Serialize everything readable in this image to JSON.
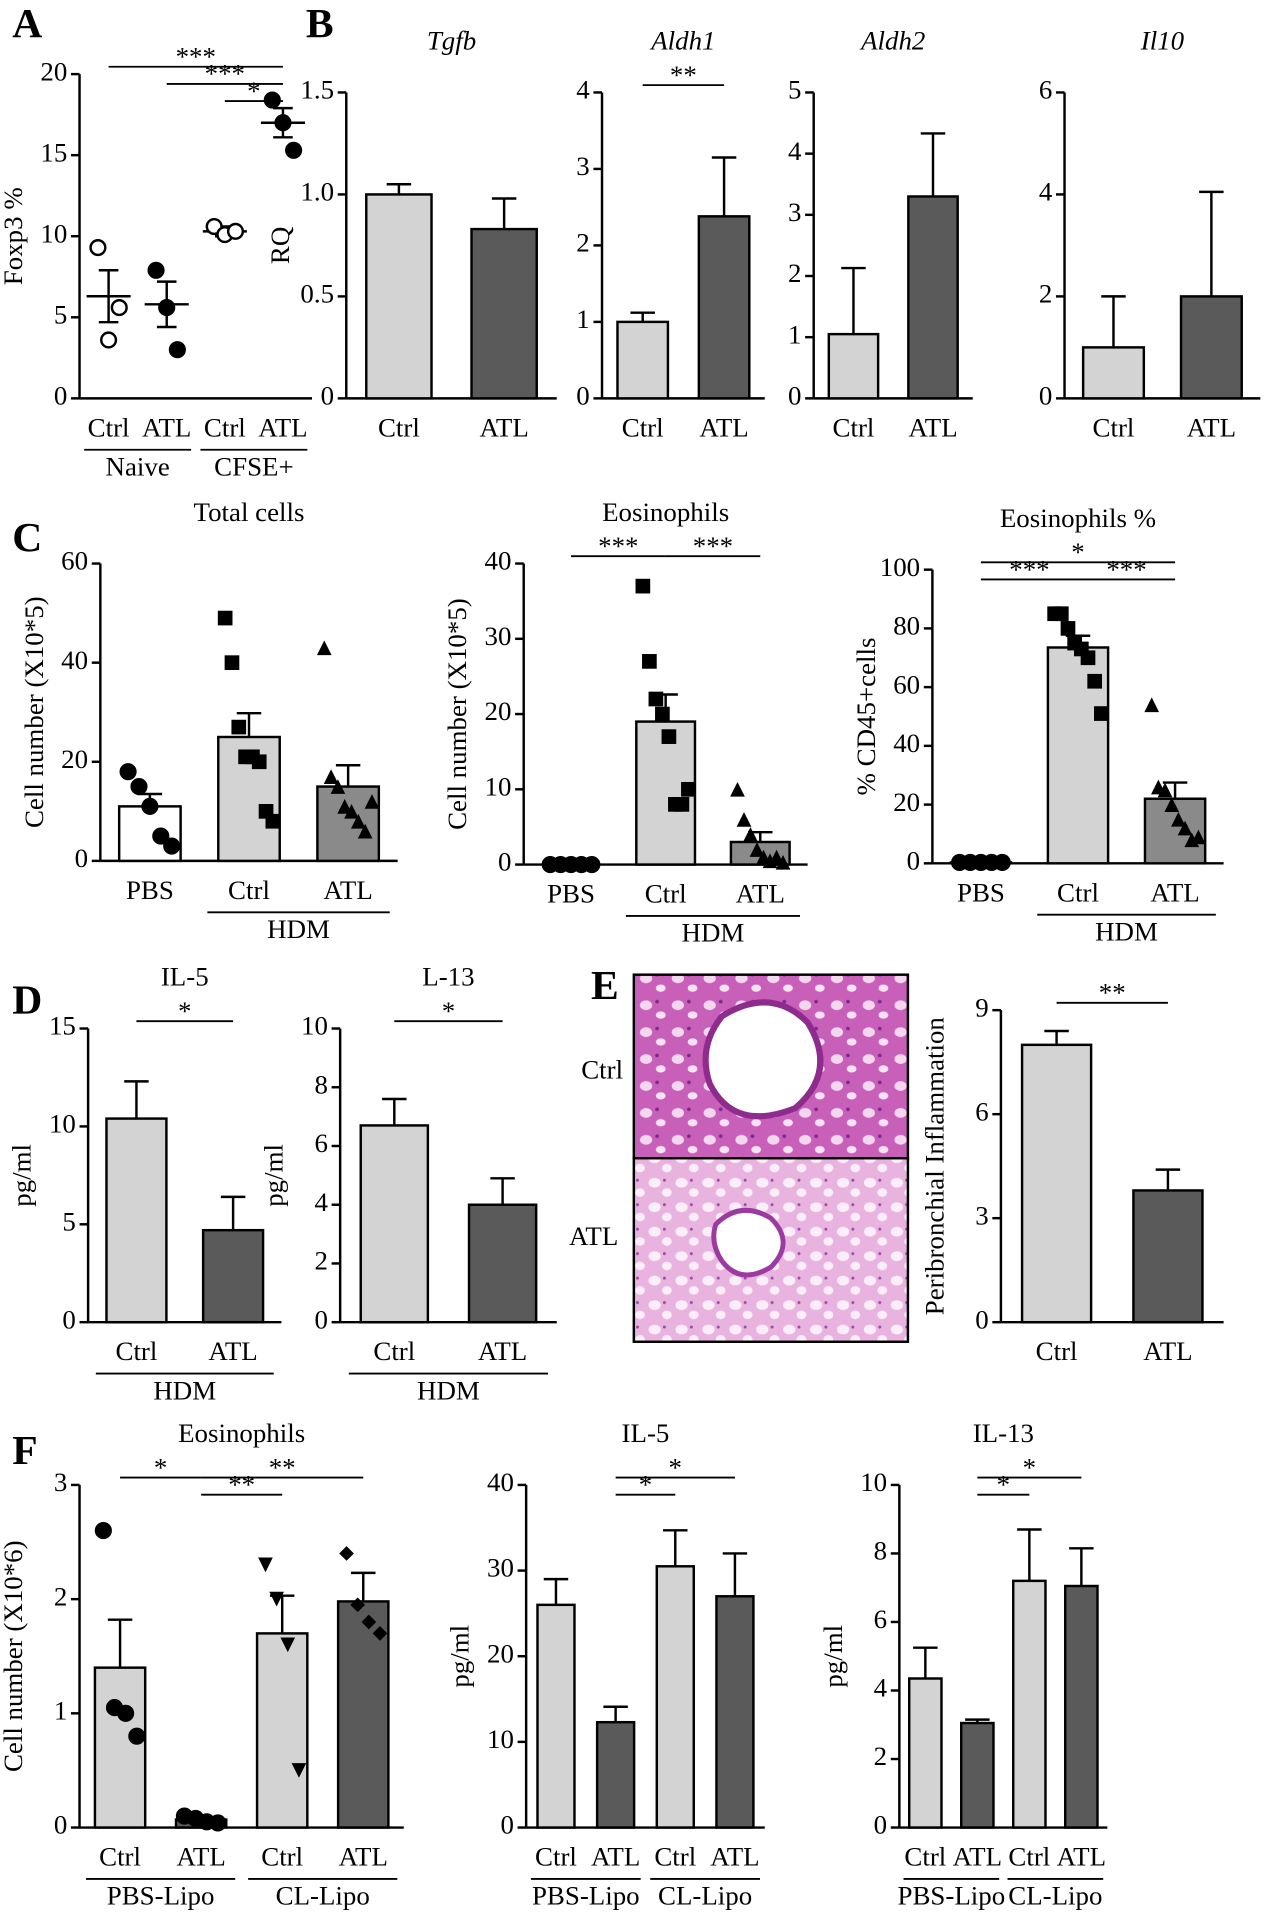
{
  "chart_data": [
    {
      "type": "dot",
      "panel": "A",
      "ylabel": "Foxp3 %",
      "categories": [
        "Ctrl",
        "ATL",
        "Ctrl",
        "ATL"
      ],
      "values": [
        6.3,
        5.8,
        10.3,
        17.0
      ],
      "errors": [
        1.6,
        1.4,
        0.3,
        0.9
      ],
      "markers": [
        "open-circle",
        "circle",
        "open-circle",
        "circle"
      ],
      "points": [
        [
          9.3,
          3.6,
          5.6
        ],
        [
          7.9,
          5.6,
          3.0
        ],
        [
          10.6,
          10.1,
          10.3
        ],
        [
          18.4,
          17.0,
          15.3
        ]
      ],
      "ylim": [
        0,
        20
      ],
      "yticks": [
        0,
        5,
        10,
        15,
        20
      ],
      "groups": [
        {
          "label": "Naive",
          "from": 0,
          "to": 1
        },
        {
          "label": "CFSE+",
          "from": 2,
          "to": 3
        }
      ],
      "significance": [
        {
          "label": "***",
          "from": 0,
          "to": 3
        },
        {
          "label": "***",
          "from": 1,
          "to": 3
        },
        {
          "label": "*",
          "from": 2,
          "to": 3
        }
      ]
    },
    {
      "type": "bar",
      "panel": "B",
      "title": "Tgfb",
      "italic": true,
      "ylabel": "RQ",
      "categories": [
        "Ctrl",
        "ATL"
      ],
      "values": [
        1.0,
        0.83
      ],
      "errors": [
        0.05,
        0.15
      ],
      "colors": [
        "#d3d3d3",
        "#5a5a5a"
      ],
      "ylim": [
        0,
        1.5
      ],
      "yticks": [
        0,
        0.5,
        {
          "value": 1,
          "label": "1.0"
        },
        1.5
      ]
    },
    {
      "type": "bar",
      "title": "Aldh1",
      "italic": true,
      "categories": [
        "Ctrl",
        "ATL"
      ],
      "values": [
        1.0,
        2.38
      ],
      "errors": [
        0.12,
        0.77
      ],
      "colors": [
        "#d3d3d3",
        "#5a5a5a"
      ],
      "ylim": [
        0,
        4
      ],
      "yticks": [
        0,
        1,
        2,
        3,
        4
      ],
      "significance": [
        {
          "label": "**",
          "from": 0,
          "to": 1
        }
      ]
    },
    {
      "type": "bar",
      "title": "Aldh2",
      "italic": true,
      "categories": [
        "Ctrl",
        "ATL"
      ],
      "values": [
        1.05,
        3.3
      ],
      "errors": [
        1.08,
        1.03
      ],
      "colors": [
        "#d3d3d3",
        "#5a5a5a"
      ],
      "ylim": [
        0,
        5
      ],
      "yticks": [
        0,
        1,
        2,
        3,
        4,
        5
      ]
    },
    {
      "type": "bar",
      "title": "Il10",
      "italic": true,
      "categories": [
        "Ctrl",
        "ATL"
      ],
      "values": [
        1.0,
        2.0
      ],
      "errors": [
        1.0,
        2.05
      ],
      "colors": [
        "#d3d3d3",
        "#5a5a5a"
      ],
      "ylim": [
        0,
        6
      ],
      "yticks": [
        0,
        2,
        4,
        6
      ]
    },
    {
      "type": "bar",
      "panel": "C",
      "title": "Total cells",
      "ylabel": "Cell number (X10*5)",
      "categories": [
        "PBS",
        "Ctrl",
        "ATL"
      ],
      "values": [
        11,
        25,
        15
      ],
      "errors": [
        2.5,
        4.8,
        4.3
      ],
      "colors": [
        "#ffffff",
        "#d3d3d3",
        "#8a8a8a"
      ],
      "markers": [
        "circle",
        "square",
        "triangle"
      ],
      "points": [
        [
          18,
          15,
          11,
          5,
          3
        ],
        [
          49,
          40,
          27,
          21,
          21,
          20,
          10,
          8
        ],
        [
          43,
          17,
          15,
          11,
          10,
          8,
          6,
          12
        ]
      ],
      "ylim": [
        0,
        60
      ],
      "yticks": [
        0,
        20,
        40,
        60
      ],
      "groups": [
        {
          "label": "HDM",
          "from": 1,
          "to": 2
        }
      ]
    },
    {
      "type": "bar",
      "title": "Eosinophils",
      "ylabel": "Cell number (X10*5)",
      "categories": [
        "PBS",
        "Ctrl",
        "ATL"
      ],
      "values": [
        0,
        19,
        3
      ],
      "errors": [
        0,
        3.6,
        1.3
      ],
      "colors": [
        "#ffffff",
        "#d3d3d3",
        "#8a8a8a"
      ],
      "markers": [
        "circle",
        "square",
        "triangle"
      ],
      "points": [
        [
          0,
          0,
          0,
          0,
          0
        ],
        [
          37,
          27,
          22,
          20,
          17,
          8,
          8,
          10
        ],
        [
          10,
          6,
          4,
          2,
          1,
          0.5,
          1,
          0.3
        ]
      ],
      "ylim": [
        0,
        40
      ],
      "yticks": [
        0,
        10,
        20,
        30,
        40
      ],
      "groups": [
        {
          "label": "HDM",
          "from": 1,
          "to": 2
        }
      ],
      "significance": [
        {
          "label": "***",
          "from": 0,
          "to": 1
        },
        {
          "label": "***",
          "from": 1,
          "to": 2
        }
      ]
    },
    {
      "type": "bar",
      "title": "Eosinophils %",
      "ylabel": "% CD45+cells",
      "categories": [
        "PBS",
        "Ctrl",
        "ATL"
      ],
      "values": [
        0.3,
        73.5,
        22
      ],
      "errors": [
        0.1,
        4,
        5.5
      ],
      "colors": [
        "#ffffff",
        "#d3d3d3",
        "#8a8a8a"
      ],
      "markers": [
        "circle",
        "square",
        "triangle"
      ],
      "points": [
        [
          0.3,
          0.3,
          0.3,
          0.3,
          0.3
        ],
        [
          85,
          85,
          80,
          75,
          73,
          70,
          62,
          51
        ],
        [
          54,
          26,
          25,
          20,
          15,
          12,
          8,
          9
        ]
      ],
      "ylim": [
        0,
        100
      ],
      "yticks": [
        0,
        20,
        40,
        60,
        80,
        100
      ],
      "groups": [
        {
          "label": "HDM",
          "from": 1,
          "to": 2
        }
      ],
      "significance": [
        {
          "label": "*",
          "from": 0,
          "to": 2
        },
        {
          "label": "***",
          "from": 0,
          "to": 1
        },
        {
          "label": "***",
          "from": 1,
          "to": 2
        }
      ]
    },
    {
      "type": "bar",
      "panel": "D",
      "title": "IL-5",
      "ylabel": "pg/ml",
      "categories": [
        "Ctrl",
        "ATL"
      ],
      "values": [
        10.4,
        4.7
      ],
      "errors": [
        1.9,
        1.7
      ],
      "colors": [
        "#d3d3d3",
        "#5a5a5a"
      ],
      "ylim": [
        0,
        15
      ],
      "yticks": [
        0,
        5,
        10,
        15
      ],
      "groups": [
        {
          "label": "HDM",
          "from": 0,
          "to": 1
        }
      ],
      "significance": [
        {
          "label": "*",
          "from": 0,
          "to": 1
        }
      ]
    },
    {
      "type": "bar",
      "title": "L-13",
      "ylabel": "pg/ml",
      "categories": [
        "Ctrl",
        "ATL"
      ],
      "values": [
        6.7,
        4.0
      ],
      "errors": [
        0.9,
        0.9
      ],
      "colors": [
        "#d3d3d3",
        "#5a5a5a"
      ],
      "ylim": [
        0,
        10
      ],
      "yticks": [
        0,
        2,
        4,
        6,
        8,
        10
      ],
      "groups": [
        {
          "label": "HDM",
          "from": 0,
          "to": 1
        }
      ],
      "significance": [
        {
          "label": "*",
          "from": 0,
          "to": 1
        }
      ]
    },
    {
      "type": "bar",
      "panel": "E",
      "ylabel": "Peribronchial Inflammation",
      "image_labels": [
        "Ctrl",
        "ATL"
      ],
      "categories": [
        "Ctrl",
        "ATL"
      ],
      "values": [
        8.0,
        3.8
      ],
      "errors": [
        0.4,
        0.6
      ],
      "colors": [
        "#d3d3d3",
        "#5a5a5a"
      ],
      "ylim": [
        0,
        9
      ],
      "yticks": [
        0,
        3,
        6,
        9
      ],
      "significance": [
        {
          "label": "**",
          "from": 0,
          "to": 1
        }
      ]
    },
    {
      "type": "bar",
      "panel": "F",
      "title": "Eosinophils",
      "ylabel": "Cell number (X10*6)",
      "categories": [
        "Ctrl",
        "ATL",
        "Ctrl",
        "ATL"
      ],
      "values": [
        1.4,
        0.07,
        1.7,
        1.98
      ],
      "errors": [
        0.42,
        0.02,
        0.33,
        0.25
      ],
      "colors": [
        "#d3d3d3",
        "#5a5a5a",
        "#d3d3d3",
        "#5a5a5a"
      ],
      "markers": [
        "circle",
        "circle",
        "triangle-down",
        "diamond"
      ],
      "points": [
        [
          2.6,
          1.05,
          1.0,
          0.8
        ],
        [
          0.1,
          0.08,
          0.05,
          0.04
        ],
        [
          2.3,
          2.0,
          1.6,
          0.5
        ],
        [
          2.4,
          1.95,
          1.8,
          1.7
        ]
      ],
      "ylim": [
        0,
        3
      ],
      "yticks": [
        0,
        1,
        2,
        3
      ],
      "groups": [
        {
          "label": "PBS-Lipo",
          "from": 0,
          "to": 1
        },
        {
          "label": "CL-Lipo",
          "from": 2,
          "to": 3
        }
      ],
      "significance": [
        {
          "label": "**",
          "from": 1,
          "to": 3
        },
        {
          "label": "*",
          "from": 0,
          "to": 1
        },
        {
          "label": "**",
          "from": 1,
          "to": 2
        }
      ]
    },
    {
      "type": "bar",
      "title": "IL-5",
      "ylabel": "pg/ml",
      "categories": [
        "Ctrl",
        "ATL",
        "Ctrl",
        "ATL"
      ],
      "values": [
        26,
        12.3,
        30.5,
        27
      ],
      "errors": [
        3,
        1.8,
        4.2,
        5
      ],
      "colors": [
        "#d3d3d3",
        "#5a5a5a",
        "#d3d3d3",
        "#5a5a5a"
      ],
      "ylim": [
        0,
        40
      ],
      "yticks": [
        0,
        10,
        20,
        30,
        40
      ],
      "groups": [
        {
          "label": "PBS-Lipo",
          "from": 0,
          "to": 1
        },
        {
          "label": "CL-Lipo",
          "from": 2,
          "to": 3
        }
      ],
      "significance": [
        {
          "label": "*",
          "from": 1,
          "to": 3
        },
        {
          "label": "*",
          "from": 1,
          "to": 2
        }
      ]
    },
    {
      "type": "bar",
      "title": "IL-13",
      "ylabel": "pg/ml",
      "categories": [
        "Ctrl",
        "ATL",
        "Ctrl",
        "ATL"
      ],
      "values": [
        4.35,
        3.05,
        7.2,
        7.05
      ],
      "errors": [
        0.9,
        0.1,
        1.5,
        1.1
      ],
      "colors": [
        "#d3d3d3",
        "#5a5a5a",
        "#d3d3d3",
        "#5a5a5a"
      ],
      "ylim": [
        0,
        10
      ],
      "yticks": [
        0,
        2,
        4,
        6,
        8,
        10
      ],
      "groups": [
        {
          "label": "PBS-Lipo",
          "from": 0,
          "to": 1
        },
        {
          "label": "CL-Lipo",
          "from": 2,
          "to": 3
        }
      ],
      "significance": [
        {
          "label": "*",
          "from": 1,
          "to": 3
        },
        {
          "label": "*",
          "from": 1,
          "to": 2
        }
      ]
    }
  ]
}
